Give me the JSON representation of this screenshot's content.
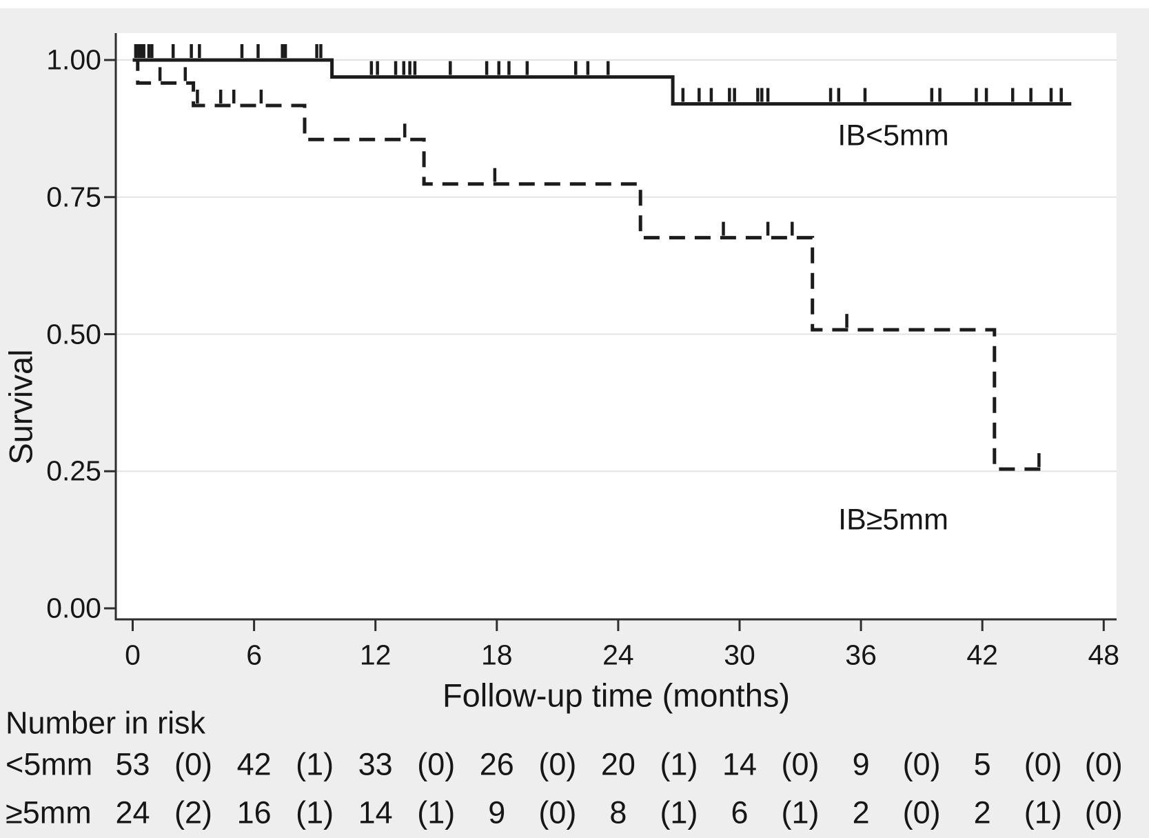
{
  "figure": {
    "background": "#efeeee",
    "plot_background": "#ffffff",
    "grid_color": "#e3e3e3",
    "axis_color": "#2e2e2e",
    "line_color": "#1c1c1c",
    "text_color": "#161616"
  },
  "chart_data": {
    "type": "line",
    "subtype": "kaplan_meier_step",
    "title": "",
    "xlabel": "Follow-up time (months)",
    "ylabel": "Survival",
    "xlim": [
      0,
      48
    ],
    "ylim": [
      0,
      1.0
    ],
    "xticks": [
      0,
      6,
      12,
      18,
      24,
      30,
      36,
      42,
      48
    ],
    "yticks": [
      {
        "label": "1.00",
        "value": 1.0,
        "gridline": true
      },
      {
        "label": "0.75",
        "value": 0.75,
        "gridline": true
      },
      {
        "label": "0.50",
        "value": 0.5,
        "gridline": true
      },
      {
        "label": "0.25",
        "value": 0.25,
        "gridline": true
      },
      {
        "label": "0.00",
        "value": 0.0,
        "gridline": false
      }
    ],
    "grid": "horizontal",
    "legend_position": "inline-annotations",
    "series": [
      {
        "id": "ib-lt-5mm",
        "name": "IB<5mm",
        "style": "solid",
        "label": "IB<5mm",
        "label_at": {
          "t": 37.6,
          "v": 0.862
        },
        "steps": [
          [
            0,
            1.0
          ],
          [
            9.85,
            0.969
          ],
          [
            26.7,
            0.92
          ]
        ],
        "end": 46.4,
        "censors": [
          [
            0.15,
            1.0
          ],
          [
            0.3,
            1.0
          ],
          [
            0.45,
            1.0
          ],
          [
            0.55,
            1.0
          ],
          [
            0.8,
            1.0
          ],
          [
            0.95,
            1.0
          ],
          [
            2.0,
            1.0
          ],
          [
            2.9,
            1.0
          ],
          [
            3.3,
            1.0
          ],
          [
            5.4,
            1.0
          ],
          [
            6.2,
            1.0
          ],
          [
            7.4,
            1.0
          ],
          [
            7.55,
            1.0
          ],
          [
            9.1,
            1.0
          ],
          [
            9.3,
            1.0
          ],
          [
            11.8,
            0.969
          ],
          [
            12.1,
            0.969
          ],
          [
            13.0,
            0.969
          ],
          [
            13.4,
            0.969
          ],
          [
            13.7,
            0.969
          ],
          [
            13.95,
            0.969
          ],
          [
            15.7,
            0.969
          ],
          [
            17.5,
            0.969
          ],
          [
            18.1,
            0.969
          ],
          [
            18.6,
            0.969
          ],
          [
            19.5,
            0.969
          ],
          [
            21.9,
            0.969
          ],
          [
            22.5,
            0.969
          ],
          [
            23.5,
            0.969
          ],
          [
            27.2,
            0.92
          ],
          [
            28.0,
            0.92
          ],
          [
            28.6,
            0.92
          ],
          [
            29.5,
            0.92
          ],
          [
            29.75,
            0.92
          ],
          [
            30.9,
            0.92
          ],
          [
            31.1,
            0.92
          ],
          [
            31.4,
            0.92
          ],
          [
            34.5,
            0.92
          ],
          [
            34.9,
            0.92
          ],
          [
            36.2,
            0.92
          ],
          [
            39.5,
            0.92
          ],
          [
            39.9,
            0.92
          ],
          [
            41.7,
            0.92
          ],
          [
            42.2,
            0.92
          ],
          [
            43.5,
            0.92
          ],
          [
            44.4,
            0.92
          ],
          [
            45.4,
            0.92
          ],
          [
            45.9,
            0.92
          ]
        ]
      },
      {
        "id": "ib-ge-5mm",
        "name": "IB≥5mm",
        "style": "dashed",
        "label": "IB≥5mm",
        "label_at": {
          "t": 37.6,
          "v": 0.161
        },
        "steps": [
          [
            0,
            1.0
          ],
          [
            0.25,
            0.958
          ],
          [
            3.0,
            0.917
          ],
          [
            8.5,
            0.855
          ],
          [
            14.4,
            0.774
          ],
          [
            25.1,
            0.676
          ],
          [
            33.6,
            0.508
          ],
          [
            42.6,
            0.254
          ]
        ],
        "end": 44.9,
        "censors": [
          [
            1.35,
            0.958
          ],
          [
            2.6,
            0.958
          ],
          [
            3.2,
            0.917
          ],
          [
            4.35,
            0.917
          ],
          [
            5.0,
            0.917
          ],
          [
            6.35,
            0.917
          ],
          [
            13.45,
            0.855
          ],
          [
            17.9,
            0.774
          ],
          [
            29.2,
            0.676
          ],
          [
            31.4,
            0.676
          ],
          [
            32.6,
            0.676
          ],
          [
            35.3,
            0.508
          ],
          [
            44.8,
            0.254
          ]
        ]
      }
    ]
  },
  "risk_table": {
    "heading": "Number in risk",
    "count_times": [
      0,
      6,
      12,
      18,
      24,
      30,
      36,
      42
    ],
    "event_times": [
      3,
      9,
      15,
      21,
      27,
      33,
      39,
      45
    ],
    "final_time": 48,
    "rows": [
      {
        "label": "<5mm",
        "counts": [
          "53",
          "42",
          "33",
          "26",
          "20",
          "14",
          "9",
          "5"
        ],
        "events": [
          "(0)",
          "(1)",
          "(0)",
          "(0)",
          "(1)",
          "(0)",
          "(0)",
          "(0)"
        ],
        "final": "(0)"
      },
      {
        "label": "≥5mm",
        "counts": [
          "24",
          "16",
          "14",
          "9",
          "8",
          "6",
          "2",
          "2"
        ],
        "events": [
          "(2)",
          "(1)",
          "(1)",
          "(0)",
          "(1)",
          "(1)",
          "(0)",
          "(1)"
        ],
        "final": "(0)"
      }
    ]
  }
}
